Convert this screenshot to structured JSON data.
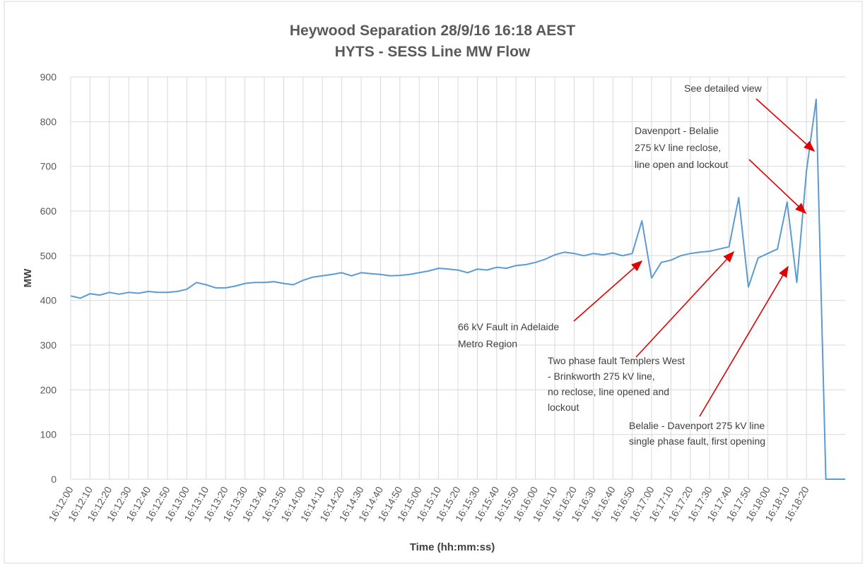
{
  "chart_data": {
    "type": "line",
    "title": [
      "Heywood Separation 28/9/16 16:18 AEST",
      "HYTS - SESS Line MW Flow"
    ],
    "xlabel": "Time (hh:mm:ss)",
    "ylabel": "MW",
    "categories": [
      "16:12:00",
      null,
      "16:12:10",
      null,
      "16:12:20",
      null,
      "16:12:30",
      null,
      "16:12:40",
      null,
      "16:12:50",
      null,
      "16:13:00",
      null,
      "16:13:10",
      null,
      "16:13:20",
      null,
      "16:13:30",
      null,
      "16:13:40",
      null,
      "16:13:50",
      null,
      "16:14:00",
      null,
      "16:14:10",
      null,
      "16:14:20",
      null,
      "16:14:30",
      null,
      "16:14:40",
      null,
      "16:14:50",
      null,
      "16:15:00",
      null,
      "16:15:10",
      null,
      "16:15:20",
      null,
      "16:15:30",
      null,
      "16:15:40",
      null,
      "16:15:50",
      null,
      "16:16:00",
      null,
      "16:16:10",
      null,
      "16:16:20",
      null,
      "16:16:30",
      null,
      "16:16:40",
      null,
      "16:16:50",
      null,
      "16:17:00",
      null,
      "16:17:10",
      null,
      "16:17:20",
      null,
      "16:17:30",
      null,
      "16:17:40",
      null,
      "16:17:50",
      null,
      "16:18:00",
      null,
      "16:18:10",
      null,
      "16:18:20",
      null,
      null,
      null,
      null
    ],
    "series": [
      {
        "name": "HYTS - SESS",
        "color": "#5b9bd5",
        "values": [
          410,
          405,
          415,
          412,
          418,
          414,
          418,
          416,
          420,
          418,
          418,
          420,
          425,
          440,
          435,
          428,
          428,
          432,
          438,
          440,
          440,
          442,
          438,
          435,
          445,
          452,
          455,
          458,
          462,
          455,
          462,
          460,
          458,
          455,
          456,
          458,
          462,
          466,
          472,
          470,
          468,
          462,
          470,
          468,
          474,
          472,
          478,
          480,
          485,
          492,
          502,
          508,
          505,
          500,
          505,
          502,
          506,
          500,
          505,
          578,
          450,
          485,
          490,
          500,
          505,
          508,
          510,
          515,
          520,
          630,
          430,
          495,
          505,
          515,
          620,
          440,
          690,
          850,
          0,
          0,
          0
        ]
      }
    ],
    "ylim": [
      0,
      900
    ],
    "yticks": [
      0,
      100,
      200,
      300,
      400,
      500,
      600,
      700,
      800,
      900
    ],
    "grid": true,
    "annotations": [
      [
        "See detailed view"
      ],
      [
        "Davenport - Belalie",
        "275 kV line reclose,",
        "line open and lockout"
      ],
      [
        "66 kV Fault in Adelaide",
        "Metro Region"
      ],
      [
        "Two phase fault Templers West",
        "- Brinkworth 275 kV line,",
        "no reclose, line opened and",
        "lockout"
      ],
      [
        "Belalie - Davenport 275 kV line",
        "single phase fault, first opening"
      ]
    ]
  }
}
